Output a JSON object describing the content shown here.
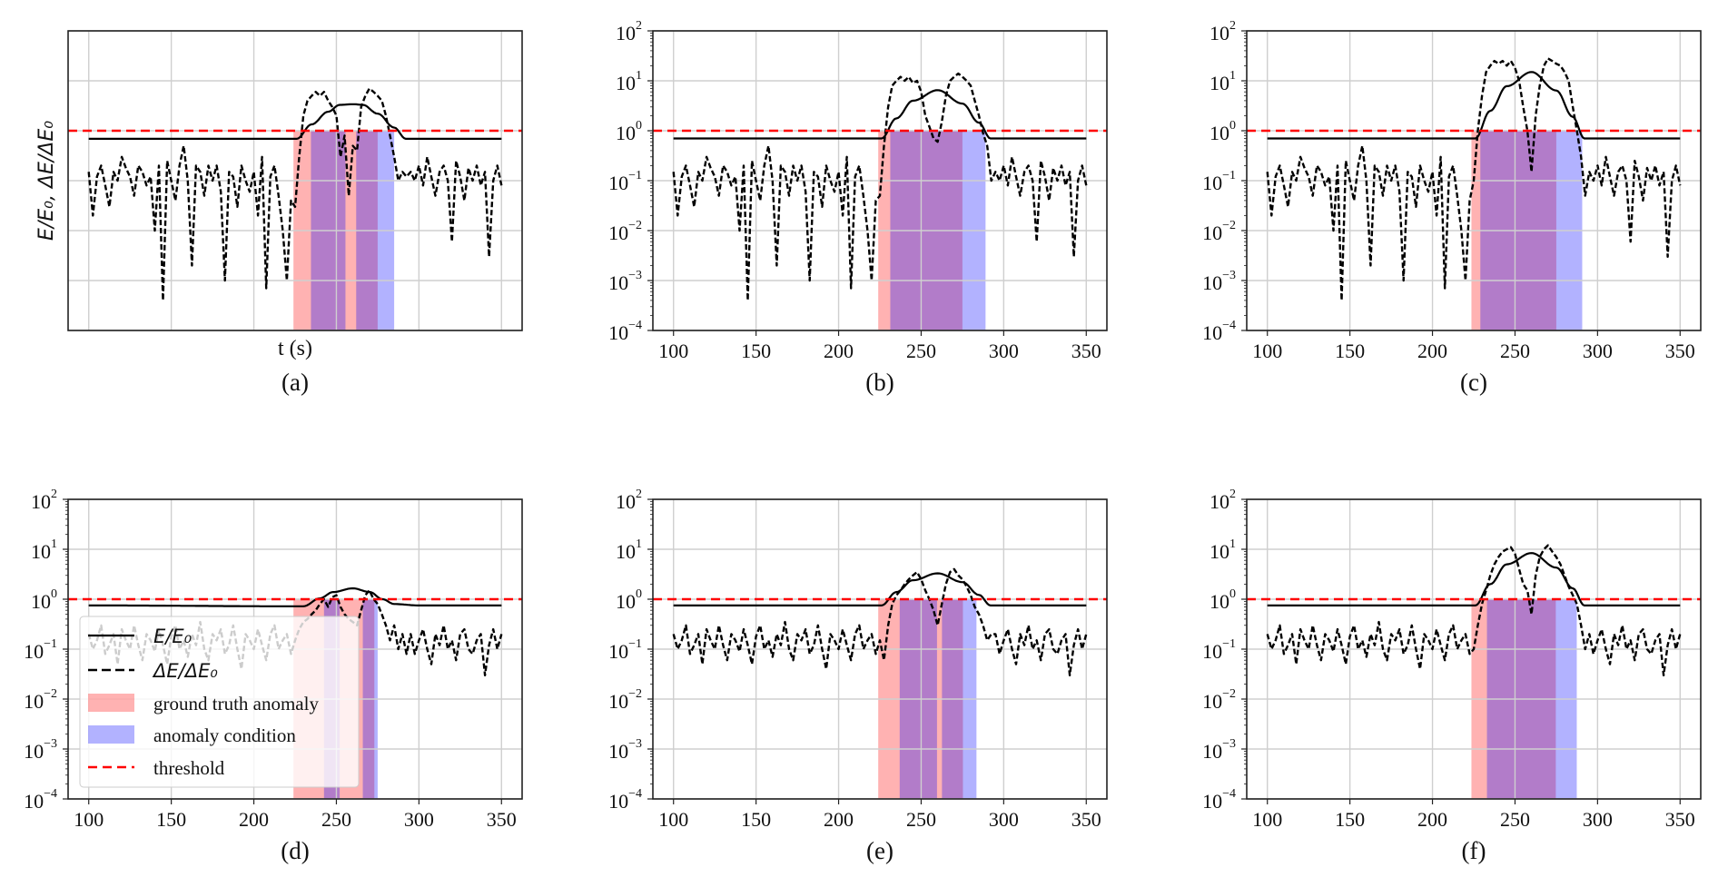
{
  "colors": {
    "ground_truth": "#ff0000",
    "condition": "#0000ff",
    "threshold": "#ff0000",
    "lines": "#000000",
    "grid": "#cfcfcf"
  },
  "legend": {
    "panel": "(d)",
    "placement": "lower-left",
    "entries": [
      {
        "label": "E/E₀",
        "style": "solid-line"
      },
      {
        "label": "ΔE/ΔE₀",
        "style": "dashed-line"
      },
      {
        "label": "ground truth anomaly",
        "style": "red-patch"
      },
      {
        "label": "anomaly condition",
        "style": "blue-patch"
      },
      {
        "label": "threshold",
        "style": "red-dashed-line"
      }
    ]
  },
  "chart_data": [
    {
      "panel_label": "(a)",
      "type": "line",
      "yscale": "log",
      "xlim": [
        87.5,
        362.5
      ],
      "ylim": [
        0.0001,
        100
      ],
      "x_ticks": [
        100,
        150,
        200,
        250,
        300,
        350
      ],
      "y_ticks": [
        0.0001,
        0.001,
        0.01,
        0.1,
        1,
        10,
        100
      ],
      "show_tick_labels": false,
      "grid": true,
      "xlabel": "t (s)",
      "ylabel": "E/E₀, ΔE/ΔE₀",
      "threshold": 1,
      "ground_truth_anomaly": [
        [
          224,
          275
        ]
      ],
      "anomaly_condition": [
        [
          234.6,
          255.5
        ],
        [
          262,
          285
        ]
      ],
      "E_E0": [
        [
          100,
          0.69
        ],
        [
          226,
          0.69
        ],
        [
          235,
          1.34
        ],
        [
          245,
          2.4
        ],
        [
          252,
          3.3
        ],
        [
          260,
          3.4
        ],
        [
          266,
          3.3
        ],
        [
          275,
          2.2
        ],
        [
          285,
          1.16
        ],
        [
          292,
          0.69
        ],
        [
          350,
          0.69
        ]
      ],
      "dE_dE0": {
        "sample_interval_s": 2.5,
        "values": [
          0.15,
          0.02,
          0.12,
          0.2,
          0.08,
          0.03,
          0.15,
          0.1,
          0.3,
          0.18,
          0.12,
          0.05,
          0.2,
          0.15,
          0.08,
          0.12,
          0.01,
          0.2,
          0.0004,
          0.25,
          0.1,
          0.04,
          0.2,
          0.5,
          0.1,
          0.002,
          0.2,
          0.15,
          0.05,
          0.2,
          0.1,
          0.2,
          0.06,
          0.001,
          0.15,
          0.12,
          0.03,
          0.2,
          0.1,
          0.06,
          0.15,
          0.02,
          0.3,
          0.0007,
          0.12,
          0.2,
          0.05,
          0.01,
          0.001,
          0.04,
          0.03,
          0.3,
          2,
          4,
          5,
          6,
          5,
          6,
          4,
          3,
          2,
          0.3,
          0.8,
          0.05,
          0.5,
          0.4,
          3,
          5,
          7,
          6,
          5,
          4,
          2,
          0.8,
          0.3,
          0.1,
          0.15,
          0.12,
          0.15,
          0.1,
          0.2,
          0.08,
          0.3,
          0.12,
          0.05,
          0.15,
          0.2,
          0.1,
          0.006,
          0.25,
          0.12,
          0.04,
          0.18,
          0.1,
          0.2,
          0.08,
          0.15,
          0.003,
          0.1,
          0.2,
          0.08
        ]
      }
    },
    {
      "panel_label": "(b)",
      "type": "line",
      "yscale": "log",
      "xlim": [
        87.5,
        362.5
      ],
      "ylim": [
        0.0001,
        100
      ],
      "x_ticks": [
        100,
        150,
        200,
        250,
        300,
        350
      ],
      "y_ticks": [
        0.0001,
        0.001,
        0.01,
        0.1,
        1,
        10,
        100
      ],
      "x_tick_labels": [
        "100",
        "150",
        "200",
        "250",
        "300",
        "350"
      ],
      "y_tick_base": "10",
      "y_tick_exponents": [
        "−4",
        "−3",
        "−2",
        "−1",
        "0",
        "1",
        "2"
      ],
      "show_tick_labels": true,
      "grid": true,
      "threshold": 1,
      "ground_truth_anomaly": [
        [
          224,
          275
        ]
      ],
      "anomaly_condition": [
        [
          231.3,
          289
        ]
      ],
      "E_E0": [
        [
          100,
          0.7
        ],
        [
          226,
          0.7
        ],
        [
          235,
          1.77
        ],
        [
          245,
          4.0
        ],
        [
          260,
          6.5
        ],
        [
          275,
          3.5
        ],
        [
          285,
          1.45
        ],
        [
          292,
          0.7
        ],
        [
          350,
          0.7
        ]
      ],
      "dE_dE0": {
        "sample_interval_s": 2.5,
        "values": [
          0.15,
          0.02,
          0.12,
          0.2,
          0.08,
          0.03,
          0.15,
          0.1,
          0.3,
          0.18,
          0.12,
          0.05,
          0.2,
          0.15,
          0.08,
          0.12,
          0.01,
          0.2,
          0.0004,
          0.25,
          0.1,
          0.04,
          0.2,
          0.5,
          0.1,
          0.002,
          0.2,
          0.15,
          0.05,
          0.2,
          0.1,
          0.2,
          0.06,
          0.001,
          0.15,
          0.12,
          0.03,
          0.2,
          0.1,
          0.06,
          0.15,
          0.02,
          0.3,
          0.0007,
          0.12,
          0.2,
          0.05,
          0.01,
          0.001,
          0.04,
          0.05,
          0.5,
          3,
          8,
          10,
          12,
          10,
          12,
          9,
          10,
          6,
          2,
          1.2,
          0.7,
          0.6,
          1.5,
          5,
          10,
          12,
          14,
          12,
          10,
          8,
          4,
          2,
          0.9,
          0.5,
          0.1,
          0.15,
          0.1,
          0.2,
          0.08,
          0.3,
          0.12,
          0.05,
          0.15,
          0.2,
          0.1,
          0.006,
          0.25,
          0.12,
          0.04,
          0.18,
          0.1,
          0.2,
          0.08,
          0.15,
          0.003,
          0.1,
          0.2,
          0.08
        ]
      }
    },
    {
      "panel_label": "(c)",
      "type": "line",
      "yscale": "log",
      "xlim": [
        87.5,
        362.5
      ],
      "ylim": [
        0.0001,
        100
      ],
      "x_ticks": [
        100,
        150,
        200,
        250,
        300,
        350
      ],
      "y_ticks": [
        0.0001,
        0.001,
        0.01,
        0.1,
        1,
        10,
        100
      ],
      "x_tick_labels": [
        "100",
        "150",
        "200",
        "250",
        "300",
        "350"
      ],
      "y_tick_base": "10",
      "y_tick_exponents": [
        "−4",
        "−3",
        "−2",
        "−1",
        "0",
        "1",
        "2"
      ],
      "show_tick_labels": true,
      "grid": true,
      "threshold": 1,
      "ground_truth_anomaly": [
        [
          223.6,
          275
        ]
      ],
      "anomaly_condition": [
        [
          229,
          290.7
        ]
      ],
      "E_E0": [
        [
          100,
          0.7
        ],
        [
          226,
          0.7
        ],
        [
          235,
          2.5
        ],
        [
          245,
          7.8
        ],
        [
          260,
          15
        ],
        [
          275,
          6.4
        ],
        [
          285,
          1.9
        ],
        [
          292,
          0.7
        ],
        [
          350,
          0.7
        ]
      ],
      "dE_dE0": {
        "sample_interval_s": 2.5,
        "values": [
          0.15,
          0.02,
          0.12,
          0.2,
          0.08,
          0.03,
          0.15,
          0.1,
          0.3,
          0.18,
          0.12,
          0.05,
          0.2,
          0.15,
          0.08,
          0.12,
          0.01,
          0.2,
          0.0004,
          0.25,
          0.1,
          0.04,
          0.2,
          0.5,
          0.1,
          0.002,
          0.2,
          0.15,
          0.05,
          0.2,
          0.1,
          0.2,
          0.06,
          0.001,
          0.15,
          0.12,
          0.03,
          0.2,
          0.1,
          0.06,
          0.15,
          0.02,
          0.3,
          0.0007,
          0.12,
          0.2,
          0.05,
          0.01,
          0.001,
          0.04,
          0.1,
          1.0,
          5,
          15,
          20,
          25,
          22,
          25,
          20,
          25,
          18,
          10,
          3,
          1,
          0.15,
          2,
          8,
          20,
          28,
          25,
          22,
          20,
          15,
          10,
          3,
          1,
          0.3,
          0.05,
          0.15,
          0.1,
          0.2,
          0.08,
          0.3,
          0.12,
          0.05,
          0.15,
          0.2,
          0.1,
          0.006,
          0.25,
          0.12,
          0.04,
          0.18,
          0.1,
          0.2,
          0.08,
          0.15,
          0.003,
          0.1,
          0.2,
          0.08
        ]
      }
    },
    {
      "panel_label": "(d)",
      "type": "line",
      "yscale": "log",
      "xlim": [
        87.5,
        362.5
      ],
      "ylim": [
        0.0001,
        100
      ],
      "x_ticks": [
        100,
        150,
        200,
        250,
        300,
        350
      ],
      "y_ticks": [
        0.0001,
        0.001,
        0.01,
        0.1,
        1,
        10,
        100
      ],
      "x_tick_labels": [
        "100",
        "150",
        "200",
        "250",
        "300",
        "350"
      ],
      "y_tick_base": "10",
      "y_tick_exponents": [
        "−4",
        "−3",
        "−2",
        "−1",
        "0",
        "1",
        "2"
      ],
      "show_tick_labels": true,
      "grid": true,
      "threshold": 1,
      "ground_truth_anomaly": [
        [
          224,
          273
        ]
      ],
      "anomaly_condition": [
        [
          242.5,
          252
        ],
        [
          266,
          275
        ]
      ],
      "E_E0": [
        [
          100,
          0.75
        ],
        [
          230,
          0.72
        ],
        [
          240,
          1.04
        ],
        [
          248,
          1.39
        ],
        [
          260,
          1.65
        ],
        [
          270,
          1.4
        ],
        [
          278,
          1.0
        ],
        [
          285,
          0.8
        ],
        [
          300,
          0.75
        ],
        [
          350,
          0.75
        ]
      ],
      "dE_dE0": {
        "sample_interval_s": 2.5,
        "values": [
          0.2,
          0.1,
          0.15,
          0.3,
          0.08,
          0.12,
          0.2,
          0.05,
          0.25,
          0.15,
          0.1,
          0.3,
          0.12,
          0.06,
          0.2,
          0.15,
          0.09,
          0.25,
          0.12,
          0.05,
          0.18,
          0.3,
          0.1,
          0.15,
          0.07,
          0.2,
          0.12,
          0.35,
          0.1,
          0.06,
          0.2,
          0.15,
          0.25,
          0.08,
          0.12,
          0.3,
          0.1,
          0.04,
          0.2,
          0.15,
          0.1,
          0.25,
          0.12,
          0.06,
          0.2,
          0.3,
          0.1,
          0.15,
          0.2,
          0.08,
          0.15,
          0.25,
          0.35,
          0.4,
          0.5,
          0.6,
          0.8,
          1.0,
          0.7,
          1.1,
          1.2,
          0.7,
          0.5,
          0.4,
          0.35,
          0.3,
          0.6,
          1.2,
          1.5,
          1.0,
          0.8,
          0.5,
          0.3,
          0.15,
          0.3,
          0.1,
          0.2,
          0.08,
          0.2,
          0.08,
          0.15,
          0.25,
          0.1,
          0.05,
          0.2,
          0.12,
          0.3,
          0.1,
          0.15,
          0.06,
          0.2,
          0.25,
          0.1,
          0.08,
          0.15,
          0.2,
          0.03,
          0.12,
          0.25,
          0.1,
          0.2
        ]
      }
    },
    {
      "panel_label": "(e)",
      "type": "line",
      "yscale": "log",
      "xlim": [
        87.5,
        362.5
      ],
      "ylim": [
        0.0001,
        100
      ],
      "x_ticks": [
        100,
        150,
        200,
        250,
        300,
        350
      ],
      "y_ticks": [
        0.0001,
        0.001,
        0.01,
        0.1,
        1,
        10,
        100
      ],
      "x_tick_labels": [
        "100",
        "150",
        "200",
        "250",
        "300",
        "350"
      ],
      "y_tick_base": "10",
      "y_tick_exponents": [
        "−4",
        "−3",
        "−2",
        "−1",
        "0",
        "1",
        "2"
      ],
      "show_tick_labels": true,
      "grid": true,
      "threshold": 1,
      "ground_truth_anomaly": [
        [
          224,
          275.3
        ]
      ],
      "anomaly_condition": [
        [
          237,
          259.6
        ],
        [
          262.6,
          283.5
        ]
      ],
      "E_E0": [
        [
          100,
          0.75
        ],
        [
          226,
          0.75
        ],
        [
          235,
          1.39
        ],
        [
          245,
          2.4
        ],
        [
          260,
          3.3
        ],
        [
          275,
          2.2
        ],
        [
          285,
          1.22
        ],
        [
          292,
          0.75
        ],
        [
          350,
          0.75
        ]
      ],
      "dE_dE0": {
        "sample_interval_s": 2.5,
        "values": [
          0.2,
          0.1,
          0.15,
          0.3,
          0.08,
          0.12,
          0.2,
          0.05,
          0.25,
          0.15,
          0.1,
          0.3,
          0.12,
          0.06,
          0.2,
          0.15,
          0.09,
          0.25,
          0.12,
          0.05,
          0.18,
          0.3,
          0.1,
          0.15,
          0.07,
          0.2,
          0.12,
          0.35,
          0.1,
          0.06,
          0.2,
          0.15,
          0.25,
          0.08,
          0.12,
          0.3,
          0.1,
          0.04,
          0.2,
          0.15,
          0.1,
          0.25,
          0.12,
          0.06,
          0.2,
          0.3,
          0.1,
          0.15,
          0.2,
          0.08,
          0.15,
          0.06,
          0.3,
          0.8,
          1.2,
          1.5,
          2.0,
          2.5,
          3.0,
          3.5,
          2.5,
          1.5,
          1.0,
          0.6,
          0.3,
          0.8,
          2.0,
          3.5,
          4.0,
          3.0,
          2.5,
          1.8,
          1.2,
          0.7,
          0.5,
          0.3,
          0.15,
          0.2,
          0.2,
          0.08,
          0.15,
          0.25,
          0.1,
          0.05,
          0.2,
          0.12,
          0.3,
          0.1,
          0.15,
          0.06,
          0.2,
          0.25,
          0.1,
          0.08,
          0.15,
          0.2,
          0.03,
          0.12,
          0.25,
          0.1,
          0.2
        ]
      }
    },
    {
      "panel_label": "(f)",
      "type": "line",
      "yscale": "log",
      "xlim": [
        87.5,
        362.5
      ],
      "ylim": [
        0.0001,
        100
      ],
      "x_ticks": [
        100,
        150,
        200,
        250,
        300,
        350
      ],
      "y_ticks": [
        0.0001,
        0.001,
        0.01,
        0.1,
        1,
        10,
        100
      ],
      "x_tick_labels": [
        "100",
        "150",
        "200",
        "250",
        "300",
        "350"
      ],
      "y_tick_base": "10",
      "y_tick_exponents": [
        "−4",
        "−3",
        "−2",
        "−1",
        "0",
        "1",
        "2"
      ],
      "show_tick_labels": true,
      "grid": true,
      "threshold": 1,
      "ground_truth_anomaly": [
        [
          223.6,
          274.7
        ]
      ],
      "anomaly_condition": [
        [
          233,
          287.4
        ]
      ],
      "E_E0": [
        [
          100,
          0.75
        ],
        [
          226,
          0.75
        ],
        [
          235,
          2.0
        ],
        [
          245,
          5.0
        ],
        [
          260,
          8.4
        ],
        [
          275,
          4.3
        ],
        [
          285,
          1.65
        ],
        [
          292,
          0.75
        ],
        [
          350,
          0.75
        ]
      ],
      "dE_dE0": {
        "sample_interval_s": 2.5,
        "values": [
          0.2,
          0.1,
          0.15,
          0.3,
          0.08,
          0.12,
          0.2,
          0.05,
          0.25,
          0.15,
          0.1,
          0.3,
          0.12,
          0.06,
          0.2,
          0.15,
          0.09,
          0.25,
          0.12,
          0.05,
          0.18,
          0.3,
          0.1,
          0.15,
          0.07,
          0.2,
          0.12,
          0.35,
          0.1,
          0.06,
          0.2,
          0.15,
          0.25,
          0.08,
          0.12,
          0.3,
          0.1,
          0.04,
          0.2,
          0.15,
          0.1,
          0.25,
          0.12,
          0.06,
          0.2,
          0.3,
          0.1,
          0.15,
          0.2,
          0.08,
          0.1,
          0.3,
          0.8,
          1.5,
          3,
          5,
          7,
          9,
          10,
          11,
          8,
          4,
          2,
          1.5,
          0.5,
          3,
          7,
          10,
          12,
          9,
          7,
          5,
          3,
          1.8,
          1.2,
          0.8,
          0.3,
          0.1,
          0.2,
          0.08,
          0.15,
          0.25,
          0.1,
          0.05,
          0.2,
          0.12,
          0.3,
          0.1,
          0.15,
          0.06,
          0.2,
          0.25,
          0.1,
          0.08,
          0.15,
          0.2,
          0.03,
          0.12,
          0.25,
          0.1,
          0.2
        ]
      }
    }
  ]
}
